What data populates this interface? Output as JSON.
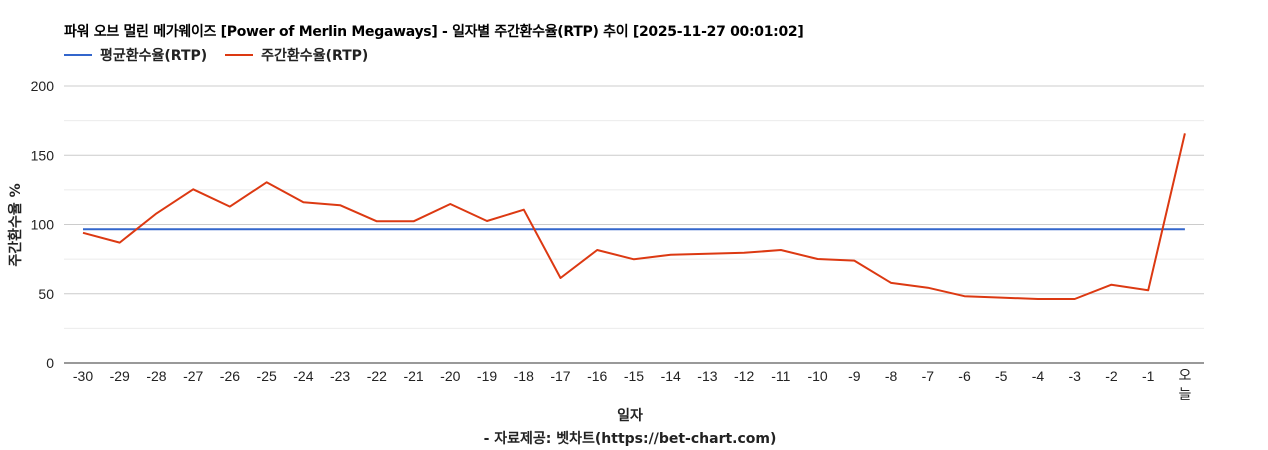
{
  "title": "파워 오브 멀린 메가웨이즈 [Power of Merlin Megaways] - 일자별 주간환수율(RTP) 추이 [2025-11-27 00:01:02]",
  "legend": [
    {
      "label": "평균환수율(RTP)",
      "color": "#3366cc"
    },
    {
      "label": "주간환수율(RTP)",
      "color": "#dc3912"
    }
  ],
  "axes": {
    "ylabel": "주간환수율 %",
    "xlabel": "일자",
    "source": "- 자료제공: 벳차트(https://bet-chart.com)"
  },
  "chart_data": {
    "type": "line",
    "title": "파워 오브 멀린 메가웨이즈 [Power of Merlin Megaways] - 일자별 주간환수율(RTP) 추이 [2025-11-27 00:01:02]",
    "xlabel": "일자",
    "ylabel": "주간환수율 %",
    "ylim": [
      0,
      200
    ],
    "yticks": [
      0,
      50,
      100,
      150,
      200
    ],
    "grid": true,
    "legend_position": "top",
    "categories": [
      "-30",
      "-29",
      "-28",
      "-27",
      "-26",
      "-25",
      "-24",
      "-23",
      "-22",
      "-21",
      "-20",
      "-19",
      "-18",
      "-17",
      "-16",
      "-15",
      "-14",
      "-13",
      "-12",
      "-11",
      "-10",
      "-9",
      "-8",
      "-7",
      "-6",
      "-5",
      "-4",
      "-3",
      "-2",
      "-1",
      "오늘"
    ],
    "series": [
      {
        "name": "평균환수율(RTP)",
        "color": "#3366cc",
        "values": [
          96.5,
          96.5,
          96.5,
          96.5,
          96.5,
          96.5,
          96.5,
          96.5,
          96.5,
          96.5,
          96.5,
          96.5,
          96.5,
          96.5,
          96.5,
          96.5,
          96.5,
          96.5,
          96.5,
          96.5,
          96.5,
          96.5,
          96.5,
          96.5,
          96.5,
          96.5,
          96.5,
          96.5,
          96.5,
          96.5,
          96.5
        ]
      },
      {
        "name": "주간환수율(RTP)",
        "color": "#dc3912",
        "values": [
          94.0,
          86.9,
          108.0,
          125.4,
          112.9,
          130.5,
          116.0,
          113.9,
          102.3,
          102.3,
          114.8,
          102.5,
          110.7,
          61.4,
          81.6,
          74.9,
          78.2,
          78.9,
          79.6,
          81.6,
          75.1,
          73.9,
          57.8,
          54.4,
          48.2,
          47.2,
          46.2,
          46.2,
          56.5,
          52.5,
          165.8
        ]
      }
    ]
  }
}
